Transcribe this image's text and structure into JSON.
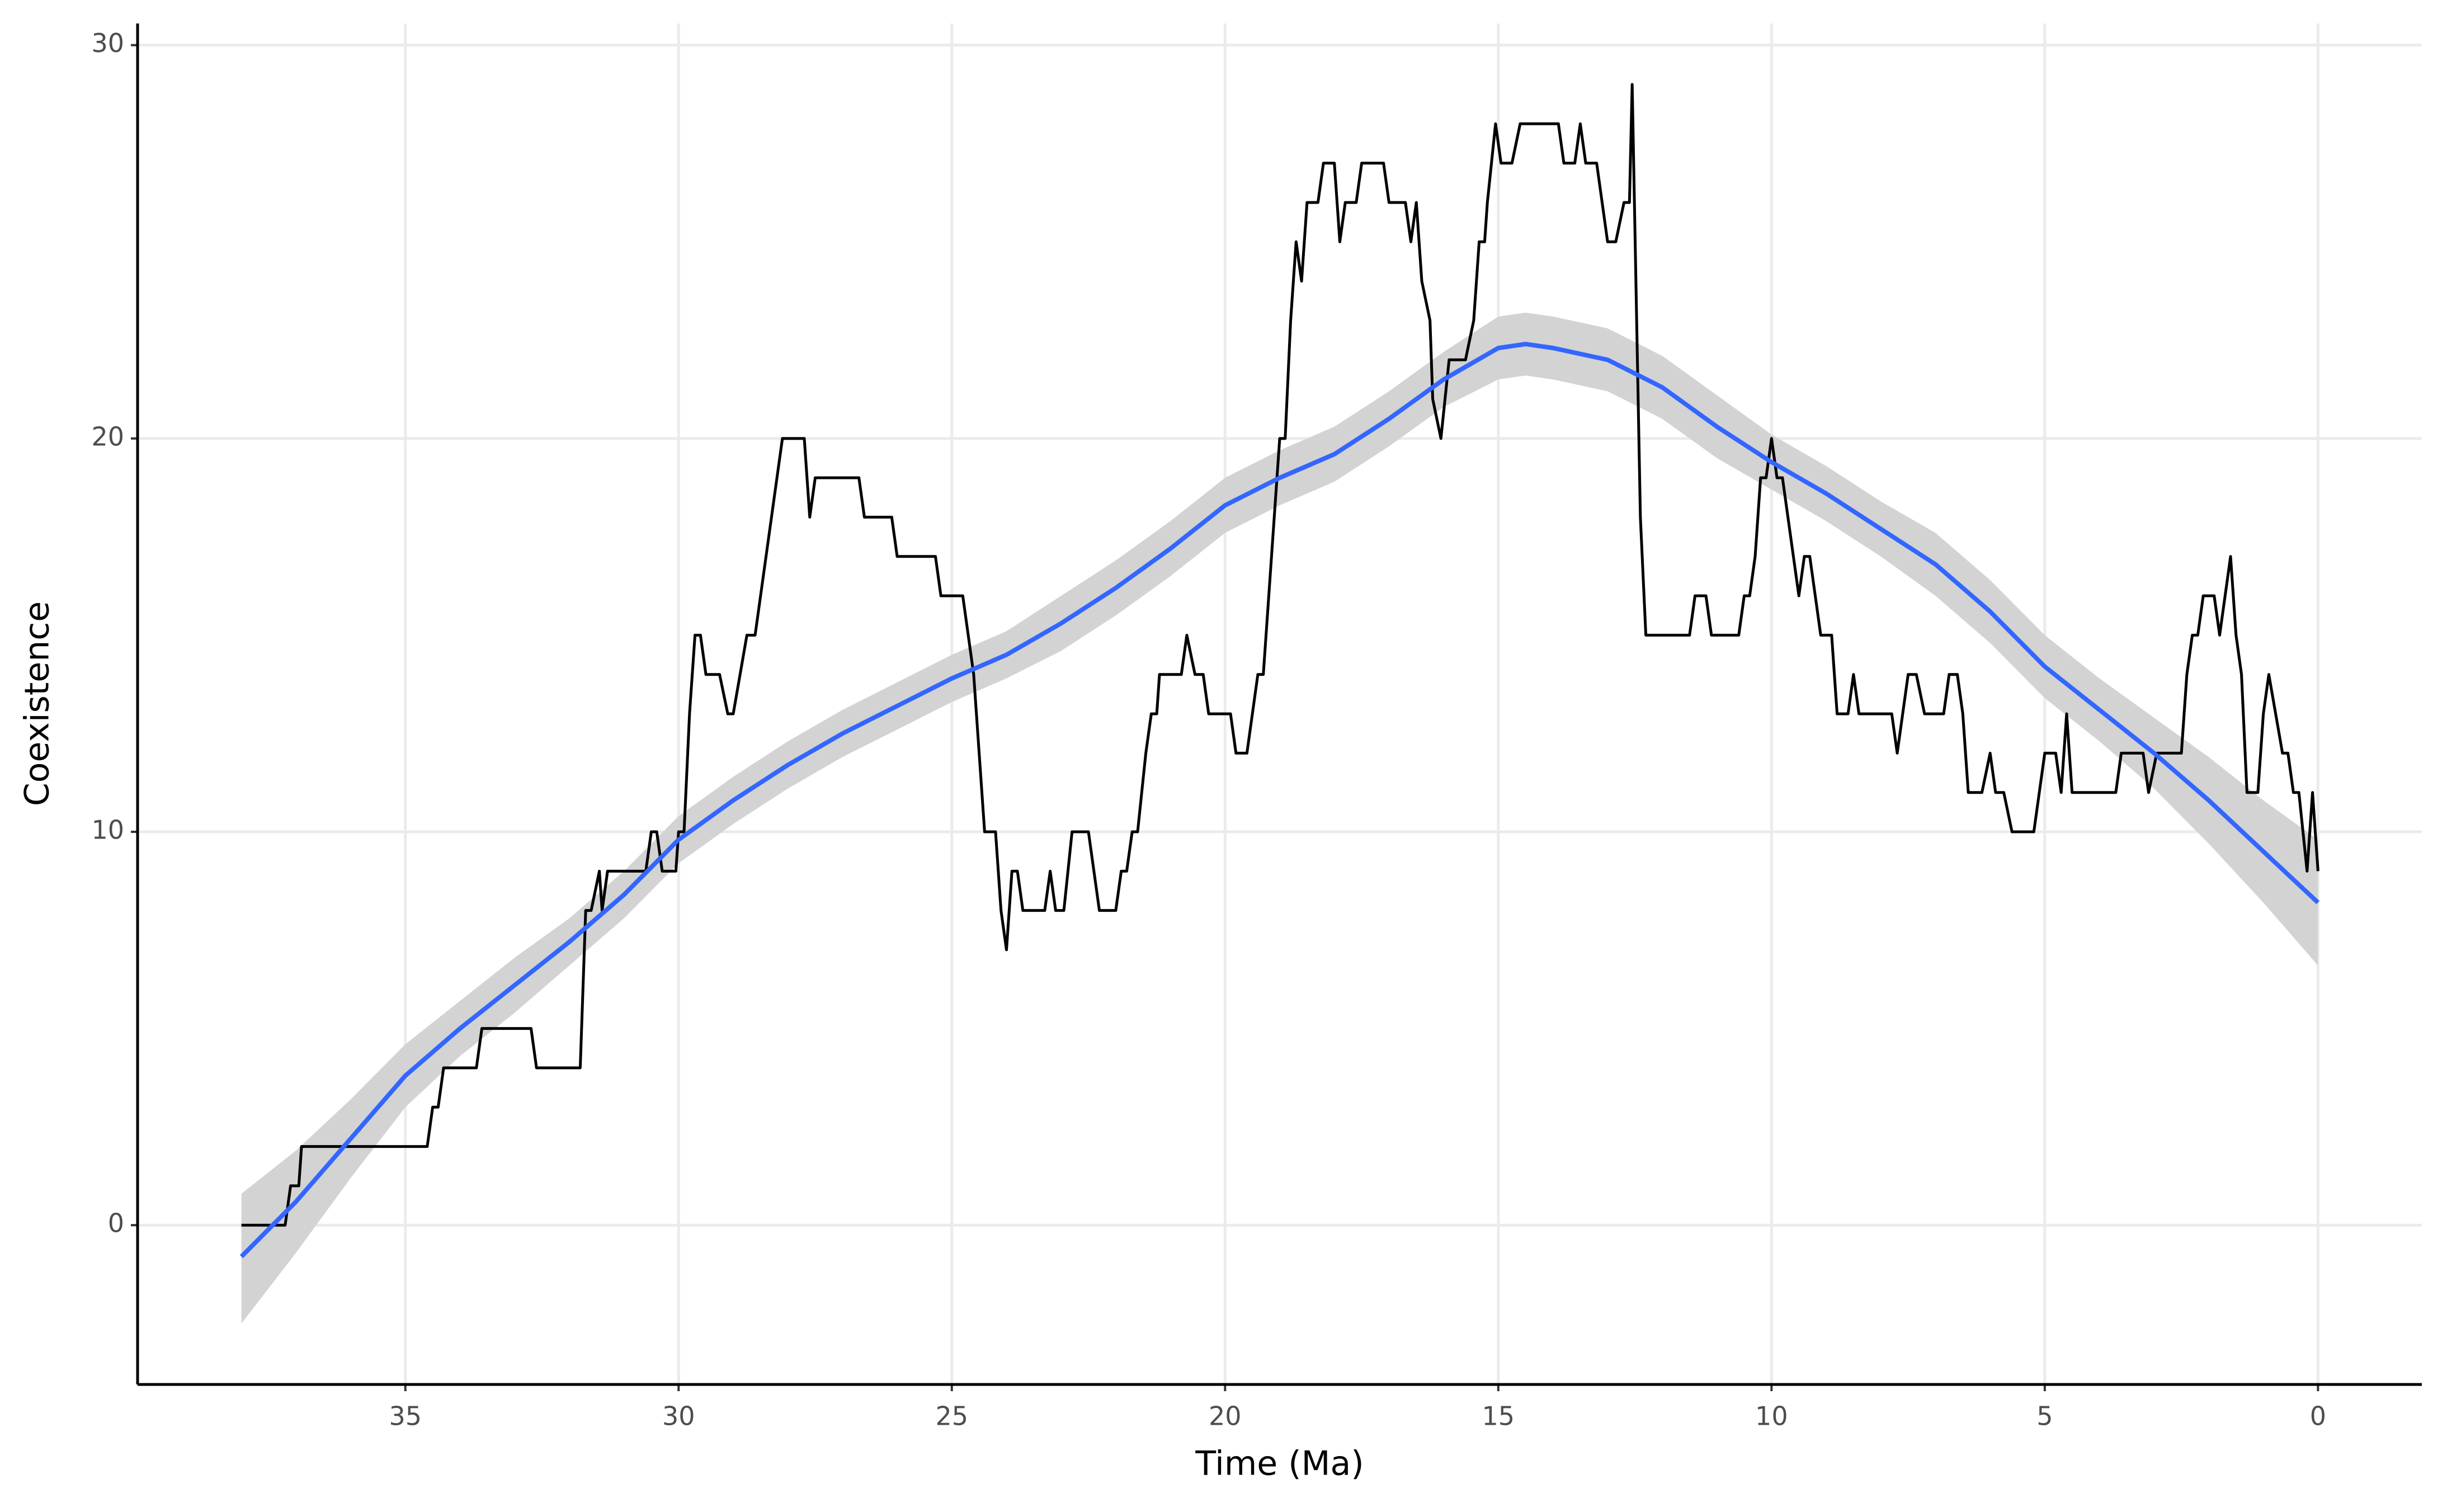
{
  "chart_data": {
    "type": "line",
    "xlabel": "Time (Ma)",
    "ylabel": "Coexistence",
    "xlim": [
      39.9,
      -1.9
    ],
    "ylim": [
      -4.05,
      30.55
    ],
    "xticks": [
      35,
      30,
      25,
      20,
      15,
      10,
      5,
      0
    ],
    "yticks": [
      0,
      10,
      20,
      30
    ],
    "grid": true,
    "series": [
      {
        "color": "#000000",
        "x": [
          38.0,
          37.2,
          37.1,
          36.95,
          36.9,
          34.6,
          34.5,
          34.4,
          34.3,
          33.7,
          33.6,
          32.7,
          32.6,
          31.8,
          31.7,
          31.6,
          31.45,
          31.4,
          31.3,
          30.6,
          30.5,
          30.4,
          30.3,
          30.05,
          30.0,
          29.9,
          29.8,
          29.7,
          29.6,
          29.5,
          29.25,
          29.1,
          29.0,
          28.75,
          28.6,
          28.1,
          27.7,
          27.6,
          27.5,
          26.7,
          26.6,
          26.1,
          26.0,
          25.3,
          25.2,
          24.8,
          24.6,
          24.4,
          24.2,
          24.1,
          24.0,
          23.9,
          23.8,
          23.7,
          23.3,
          23.2,
          23.1,
          22.95,
          22.8,
          22.5,
          22.3,
          22.0,
          21.9,
          21.8,
          21.7,
          21.6,
          21.45,
          21.35,
          21.25,
          21.2,
          20.8,
          20.7,
          20.55,
          20.4,
          20.3,
          19.9,
          19.8,
          19.6,
          19.4,
          19.3,
          19.0,
          18.9,
          18.8,
          18.7,
          18.6,
          18.5,
          18.3,
          18.2,
          18.0,
          17.9,
          17.8,
          17.6,
          17.5,
          17.1,
          17.0,
          16.7,
          16.6,
          16.5,
          16.4,
          16.25,
          16.2,
          16.05,
          15.9,
          15.6,
          15.45,
          15.35,
          15.25,
          15.2,
          15.05,
          14.95,
          14.75,
          14.6,
          13.9,
          13.8,
          13.6,
          13.5,
          13.4,
          13.2,
          13.0,
          12.85,
          12.7,
          12.6,
          12.55,
          12.4,
          12.3,
          11.5,
          11.4,
          11.2,
          11.1,
          10.6,
          10.5,
          10.4,
          10.3,
          10.2,
          10.1,
          10.0,
          9.9,
          9.8,
          9.5,
          9.4,
          9.3,
          9.1,
          8.9,
          8.8,
          8.6,
          8.5,
          8.4,
          7.8,
          7.7,
          7.5,
          7.35,
          7.2,
          6.85,
          6.75,
          6.6,
          6.5,
          6.4,
          6.15,
          6.0,
          5.9,
          5.75,
          5.6,
          5.2,
          5.0,
          4.8,
          4.7,
          4.6,
          4.5,
          3.7,
          3.6,
          3.2,
          3.1,
          2.95,
          2.5,
          2.4,
          2.3,
          2.2,
          2.1,
          1.9,
          1.8,
          1.7,
          1.6,
          1.5,
          1.4,
          1.3,
          1.1,
          1.0,
          0.9,
          0.65,
          0.55,
          0.45,
          0.35,
          0.2,
          0.1,
          0.0
        ],
        "values": [
          0,
          0,
          1,
          1,
          2,
          2,
          3,
          3,
          4,
          4,
          5,
          5,
          4,
          4,
          8,
          8,
          9,
          8,
          9,
          9,
          10,
          10,
          9,
          9,
          10,
          10,
          13,
          15,
          15,
          14,
          14,
          13,
          13,
          15,
          15,
          20,
          20,
          18,
          19,
          19,
          18,
          18,
          17,
          17,
          16,
          16,
          14,
          10,
          10,
          8,
          7,
          9,
          9,
          8,
          8,
          9,
          8,
          8,
          10,
          10,
          8,
          8,
          9,
          9,
          10,
          10,
          12,
          13,
          13,
          14,
          14,
          15,
          14,
          14,
          13,
          13,
          12,
          12,
          14,
          14,
          20,
          20,
          23,
          25,
          24,
          26,
          26,
          27,
          27,
          25,
          26,
          26,
          27,
          27,
          26,
          26,
          25,
          26,
          24,
          23,
          21,
          20,
          22,
          22,
          23,
          25,
          25,
          26,
          28,
          27,
          27,
          28,
          28,
          27,
          27,
          28,
          27,
          27,
          25,
          25,
          26,
          26,
          29,
          18,
          15,
          15,
          16,
          16,
          15,
          15,
          16,
          16,
          17,
          19,
          19,
          20,
          19,
          19,
          16,
          17,
          17,
          15,
          15,
          13,
          13,
          14,
          13,
          13,
          12,
          14,
          14,
          13,
          13,
          14,
          14,
          13,
          11,
          11,
          12,
          11,
          11,
          10,
          10,
          12,
          12,
          11,
          13,
          11,
          11,
          12,
          12,
          11,
          12,
          12,
          14,
          15,
          15,
          16,
          16,
          15,
          16,
          17,
          15,
          14,
          11,
          11,
          13,
          14,
          12,
          12,
          11,
          11,
          9,
          11,
          9
        ]
      }
    ],
    "smooth": {
      "color": "#3366ff",
      "band_color": "#d3d3d3",
      "x": [
        38,
        37,
        36,
        35,
        34,
        33,
        32,
        31,
        30,
        29,
        28,
        27,
        26,
        25,
        24,
        23,
        22,
        21,
        20,
        19,
        18,
        17,
        16,
        15,
        14.5,
        14,
        13,
        12,
        11,
        10,
        9,
        8,
        7,
        6,
        5,
        4,
        3,
        2,
        1,
        0
      ],
      "values": [
        -0.8,
        0.6,
        2.2,
        3.8,
        5.0,
        6.1,
        7.2,
        8.4,
        9.8,
        10.8,
        11.7,
        12.5,
        13.2,
        13.9,
        14.5,
        15.3,
        16.2,
        17.2,
        18.3,
        19.0,
        19.6,
        20.5,
        21.5,
        22.3,
        22.4,
        22.3,
        22.0,
        21.3,
        20.3,
        19.4,
        18.6,
        17.7,
        16.8,
        15.6,
        14.2,
        13.1,
        12.0,
        10.8,
        9.5,
        8.2
      ],
      "lower": [
        -2.5,
        -0.7,
        1.2,
        3.0,
        4.3,
        5.4,
        6.6,
        7.8,
        9.2,
        10.2,
        11.1,
        11.9,
        12.6,
        13.3,
        13.9,
        14.6,
        15.5,
        16.5,
        17.6,
        18.3,
        18.9,
        19.8,
        20.8,
        21.5,
        21.6,
        21.5,
        21.2,
        20.5,
        19.5,
        18.7,
        17.9,
        17.0,
        16.0,
        14.8,
        13.4,
        12.3,
        11.1,
        9.7,
        8.2,
        6.6
      ],
      "upper": [
        0.8,
        1.9,
        3.2,
        4.6,
        5.7,
        6.8,
        7.8,
        9.0,
        10.4,
        11.4,
        12.3,
        13.1,
        13.8,
        14.5,
        15.1,
        16.0,
        16.9,
        17.9,
        19.0,
        19.7,
        20.3,
        21.2,
        22.2,
        23.1,
        23.2,
        23.1,
        22.8,
        22.1,
        21.1,
        20.1,
        19.3,
        18.4,
        17.6,
        16.4,
        15.0,
        13.9,
        12.9,
        11.9,
        10.8,
        9.8
      ]
    }
  }
}
